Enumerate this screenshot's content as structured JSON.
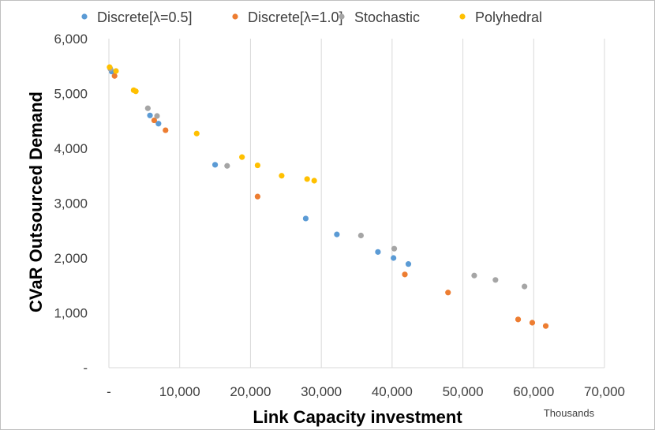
{
  "chart_data": {
    "type": "scatter",
    "title": "",
    "xlabel": "Link Capacity investment",
    "ylabel": "CVaR Outsourced Demand",
    "x_units": "Thousands",
    "xlim": [
      0,
      70000
    ],
    "ylim": [
      0,
      6000
    ],
    "x_ticks": [
      0,
      10000,
      20000,
      30000,
      40000,
      50000,
      60000,
      70000
    ],
    "x_tick_labels": [
      "-",
      "10,000",
      "20,000",
      "30,000",
      "40,000",
      "50,000",
      "60,000",
      "70,000"
    ],
    "y_ticks": [
      0,
      1000,
      2000,
      3000,
      4000,
      5000,
      6000
    ],
    "y_tick_labels": [
      "-",
      "1,000",
      "2,000",
      "3,000",
      "4,000",
      "5,000",
      "6,000"
    ],
    "grid": "vertical",
    "legend_position": "top",
    "series": [
      {
        "name": "Discrete[λ=0.5]",
        "color": "#5B9BD5",
        "points": [
          [
            400,
            5400
          ],
          [
            5800,
            4600
          ],
          [
            7000,
            4450
          ],
          [
            15000,
            3700
          ],
          [
            27800,
            2720
          ],
          [
            32200,
            2430
          ],
          [
            38000,
            2110
          ],
          [
            40200,
            2000
          ],
          [
            42300,
            1890
          ]
        ]
      },
      {
        "name": "Discrete[λ=1.0]",
        "color": "#ED7D31",
        "points": [
          [
            800,
            5320
          ],
          [
            6400,
            4510
          ],
          [
            8000,
            4330
          ],
          [
            21000,
            3120
          ],
          [
            41800,
            1700
          ],
          [
            47900,
            1370
          ],
          [
            57800,
            880
          ],
          [
            59800,
            820
          ],
          [
            61700,
            760
          ]
        ]
      },
      {
        "name": "Stochastic",
        "color": "#A5A5A5",
        "points": [
          [
            200,
            5450
          ],
          [
            5500,
            4730
          ],
          [
            6800,
            4590
          ],
          [
            16700,
            3680
          ],
          [
            35600,
            2410
          ],
          [
            40300,
            2170
          ],
          [
            51600,
            1680
          ],
          [
            54600,
            1600
          ],
          [
            58700,
            1480
          ]
        ]
      },
      {
        "name": "Polyhedral",
        "color": "#FFC000",
        "points": [
          [
            100,
            5480
          ],
          [
            1000,
            5410
          ],
          [
            3500,
            5060
          ],
          [
            3800,
            5040
          ],
          [
            12400,
            4270
          ],
          [
            18800,
            3840
          ],
          [
            21000,
            3690
          ],
          [
            24400,
            3500
          ],
          [
            28000,
            3440
          ],
          [
            29000,
            3410
          ]
        ]
      }
    ]
  }
}
